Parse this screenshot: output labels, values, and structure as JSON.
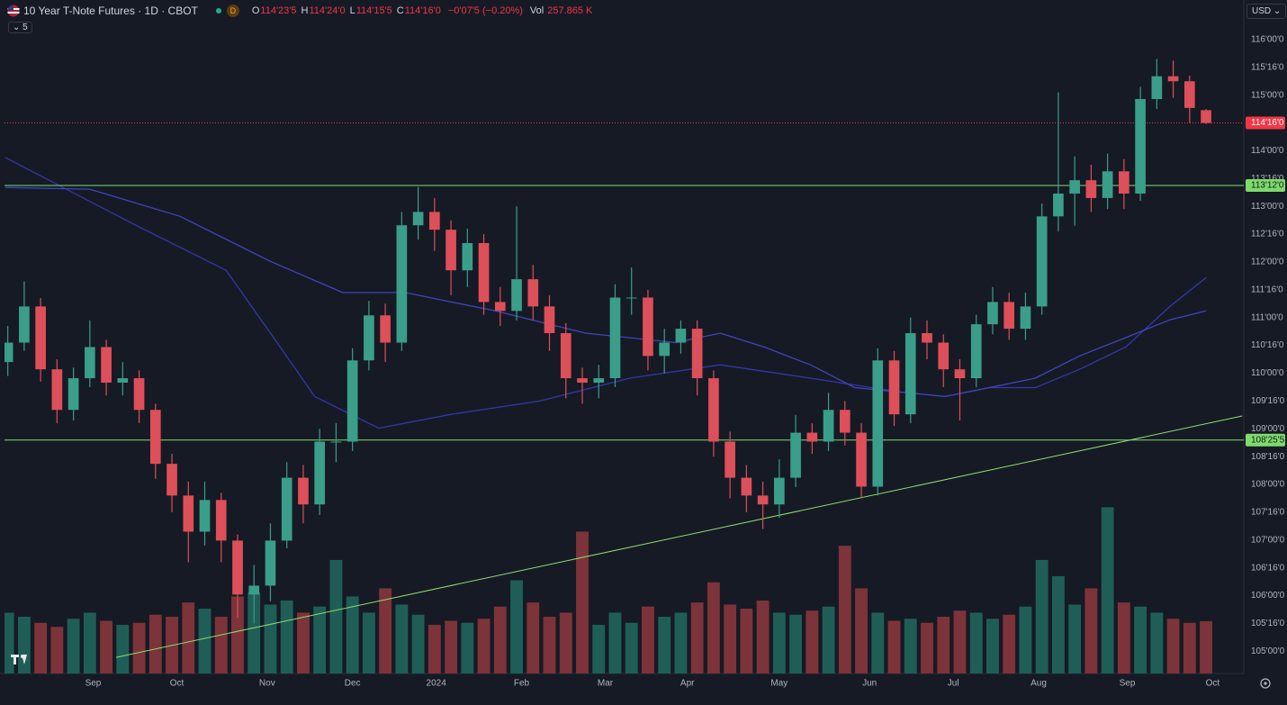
{
  "chart_data": {
    "type": "candlestick",
    "title": "10 Year T-Note Futures · 1D · CBOT",
    "interval_badge": "D",
    "legend_values": [
      {
        "label": "O",
        "value": "114'23'5"
      },
      {
        "label": "H",
        "value": "114'24'0"
      },
      {
        "label": "L",
        "value": "114'15'5"
      },
      {
        "label": "C",
        "value": "114'16'0"
      }
    ],
    "change": "−0'07'5 (−0.20%)",
    "volume_label": "Vol",
    "volume_text": "257.865 K",
    "indicators_count": "5",
    "currency": "USD",
    "xlim": [
      -0.2,
      75.3
    ],
    "xticks": [
      {
        "value": 5.2,
        "label": "Sep"
      },
      {
        "value": 10.3,
        "label": "Oct"
      },
      {
        "value": 15.8,
        "label": "Nov"
      },
      {
        "value": 21.0,
        "label": "Dec"
      },
      {
        "value": 26.1,
        "label": "2024"
      },
      {
        "value": 31.3,
        "label": "Feb"
      },
      {
        "value": 36.4,
        "label": "Mar"
      },
      {
        "value": 41.4,
        "label": "Apr"
      },
      {
        "value": 47.0,
        "label": "May"
      },
      {
        "value": 52.5,
        "label": "Jun"
      },
      {
        "value": 57.6,
        "label": "Jul"
      },
      {
        "value": 62.8,
        "label": "Aug"
      },
      {
        "value": 68.2,
        "label": "Sep"
      },
      {
        "value": 73.4,
        "label": "Oct"
      }
    ],
    "ylim": [
      104.6,
      116.63
    ],
    "yticks": [
      {
        "value": 116,
        "label": "116'00'0"
      },
      {
        "value": 115.5,
        "label": "115'16'0"
      },
      {
        "value": 115,
        "label": "115'00'0"
      },
      {
        "value": 114.5,
        "label": "114'16'0"
      },
      {
        "value": 114,
        "label": "114'00'0"
      },
      {
        "value": 113.5,
        "label": "113'16'0"
      },
      {
        "value": 113,
        "label": "113'00'0"
      },
      {
        "value": 112.5,
        "label": "112'16'0"
      },
      {
        "value": 112,
        "label": "112'00'0"
      },
      {
        "value": 111.5,
        "label": "111'16'0"
      },
      {
        "value": 111,
        "label": "111'00'0"
      },
      {
        "value": 110.5,
        "label": "110'16'0"
      },
      {
        "value": 110,
        "label": "110'00'0"
      },
      {
        "value": 109.5,
        "label": "109'16'0"
      },
      {
        "value": 109,
        "label": "109'00'0"
      },
      {
        "value": 108.5,
        "label": "108'16'0"
      },
      {
        "value": 108,
        "label": "108'00'0"
      },
      {
        "value": 107.5,
        "label": "107'16'0"
      },
      {
        "value": 107,
        "label": "107'00'0"
      },
      {
        "value": 106.5,
        "label": "106'16'0"
      },
      {
        "value": 106,
        "label": "106'00'0"
      },
      {
        "value": 105.5,
        "label": "105'16'0"
      },
      {
        "value": 105,
        "label": "105'00'0"
      }
    ],
    "up_color": "#3a9e8a",
    "down_color": "#dd4f59",
    "volume_up_color": "#1f5e57",
    "volume_down_color": "#7c3339",
    "open": [
      110.2,
      110.55,
      111.2,
      110.07,
      109.34,
      109.91,
      110.47,
      109.83,
      109.91,
      109.34,
      108.37,
      107.8,
      107.15,
      107.72,
      106.99,
      106.02,
      106.18,
      106.99,
      108.12,
      107.64,
      108.77,
      108.77,
      110.23,
      111.04,
      110.55,
      112.66,
      112.9,
      112.58,
      111.85,
      112.34,
      111.28,
      111.12,
      111.69,
      111.2,
      110.72,
      109.91,
      109.83,
      109.91,
      111.36,
      111.36,
      110.31,
      110.55,
      110.8,
      109.91,
      108.77,
      108.12,
      107.8,
      107.64,
      108.12,
      108.93,
      108.77,
      109.34,
      108.93,
      107.96,
      110.23,
      109.26,
      110.72,
      110.55,
      110.07,
      109.91,
      110.88,
      111.28,
      110.8,
      111.2,
      112.82,
      113.23,
      113.47,
      113.15,
      113.63,
      113.23,
      114.93,
      115.34,
      115.25,
      114.73
    ],
    "high": [
      110.85,
      111.65,
      111.35,
      110.25,
      110.1,
      110.95,
      110.6,
      110.2,
      110.05,
      109.45,
      108.55,
      108.05,
      108.05,
      107.85,
      107.1,
      106.55,
      107.3,
      108.4,
      108.35,
      109.0,
      109.1,
      110.45,
      111.3,
      111.25,
      112.9,
      113.35,
      113.15,
      112.75,
      112.6,
      112.5,
      111.55,
      113.0,
      111.95,
      111.4,
      110.9,
      110.1,
      110.15,
      111.6,
      111.9,
      111.5,
      110.8,
      110.95,
      110.95,
      110.05,
      108.95,
      108.35,
      108.05,
      108.45,
      109.25,
      109.1,
      109.65,
      109.5,
      109.1,
      110.45,
      110.4,
      111.0,
      110.95,
      110.7,
      110.25,
      111.05,
      111.55,
      111.45,
      111.45,
      113.05,
      115.05,
      113.9,
      113.75,
      113.95,
      113.85,
      115.15,
      115.65,
      115.62,
      115.35,
      114.75
    ],
    "low": [
      109.95,
      110.4,
      109.85,
      109.1,
      109.15,
      109.75,
      109.6,
      109.6,
      109.1,
      108.1,
      107.5,
      106.6,
      106.9,
      106.6,
      105.6,
      105.5,
      105.9,
      106.85,
      107.3,
      107.45,
      108.4,
      108.6,
      110.05,
      110.2,
      110.4,
      112.4,
      112.2,
      111.4,
      111.55,
      111.05,
      110.85,
      110.95,
      110.95,
      110.4,
      109.55,
      109.45,
      109.55,
      109.75,
      111.05,
      110.05,
      110.0,
      110.35,
      109.6,
      108.5,
      107.75,
      107.5,
      107.2,
      107.4,
      107.95,
      108.55,
      108.6,
      108.7,
      107.75,
      107.8,
      109.05,
      109.1,
      110.25,
      109.75,
      109.15,
      109.75,
      110.7,
      110.6,
      110.6,
      111.05,
      112.55,
      112.65,
      112.9,
      112.95,
      112.95,
      113.1,
      114.75,
      114.95,
      114.5,
      114.48
    ],
    "close": [
      110.55,
      111.2,
      110.07,
      109.34,
      109.91,
      110.47,
      109.83,
      109.91,
      109.34,
      108.37,
      107.8,
      107.15,
      107.72,
      106.99,
      106.02,
      106.18,
      106.99,
      108.12,
      107.64,
      108.77,
      108.77,
      110.23,
      111.04,
      110.55,
      112.66,
      112.9,
      112.58,
      111.85,
      112.34,
      111.28,
      111.12,
      111.69,
      111.2,
      110.72,
      109.91,
      109.83,
      109.91,
      111.36,
      111.36,
      110.31,
      110.55,
      110.8,
      109.91,
      108.77,
      108.12,
      107.8,
      107.64,
      108.12,
      108.93,
      108.77,
      109.34,
      108.93,
      107.96,
      110.23,
      109.26,
      110.72,
      110.55,
      110.07,
      109.91,
      110.88,
      111.28,
      110.8,
      111.2,
      112.82,
      113.23,
      113.47,
      113.15,
      113.63,
      113.23,
      114.93,
      115.34,
      115.25,
      114.77,
      114.5
    ],
    "volume_lim": [
      0,
      3300
    ],
    "volume": [
      300,
      280,
      250,
      230,
      270,
      300,
      260,
      240,
      250,
      290,
      280,
      350,
      320,
      280,
      380,
      400,
      340,
      360,
      300,
      330,
      560,
      380,
      300,
      420,
      340,
      290,
      240,
      260,
      250,
      270,
      330,
      460,
      350,
      280,
      300,
      700,
      240,
      300,
      250,
      330,
      280,
      300,
      350,
      450,
      340,
      320,
      360,
      300,
      290,
      310,
      330,
      630,
      420,
      300,
      260,
      270,
      250,
      280,
      310,
      300,
      270,
      290,
      330,
      560,
      480,
      340,
      420,
      820,
      350,
      330,
      300,
      270,
      250,
      257.865
    ],
    "moving_averages": [
      {
        "color": "#3238a8",
        "x": [
          -0.16,
          7.8,
          13.3,
          16,
          18.7,
          22.6,
          27,
          32.4,
          37.9,
          43.4,
          48.9,
          54.4,
          57.1,
          59.8,
          62.6,
          65.3,
          68.1,
          70.8,
          73
        ],
        "values": [
          113.88,
          112.66,
          111.85,
          110.72,
          109.58,
          109.01,
          109.26,
          109.5,
          109.91,
          110.15,
          109.91,
          109.66,
          109.58,
          109.74,
          109.74,
          110.07,
          110.47,
          111.2,
          111.72
        ]
      },
      {
        "color": "#3f46bd",
        "x": [
          -0.16,
          5,
          10.5,
          16,
          20.4,
          24.2,
          29.7,
          35.2,
          40.7,
          43.4,
          46.1,
          48.9,
          51.6,
          54.4,
          57.1,
          59.8,
          62.6,
          65.3,
          68.1,
          70.8,
          73
        ],
        "values": [
          113.34,
          113.31,
          112.82,
          112.01,
          111.45,
          111.45,
          111.12,
          110.72,
          110.55,
          110.72,
          110.47,
          110.15,
          109.74,
          109.66,
          109.58,
          109.74,
          109.91,
          110.31,
          110.64,
          110.96,
          111.12
        ]
      }
    ],
    "trendline": {
      "color": "#8fdc6e",
      "x": [
        6.6,
        75.2
      ],
      "values": [
        104.89,
        109.23
      ]
    },
    "levels": [
      {
        "value": 113.375,
        "label": "113'12'0",
        "color": "#7ddc6a"
      },
      {
        "value": 108.797,
        "label": "108'25'5",
        "color": "#7ddc6a"
      }
    ],
    "last_price": {
      "value": 114.5,
      "label": "114'16'0",
      "color": "#f23645"
    }
  }
}
